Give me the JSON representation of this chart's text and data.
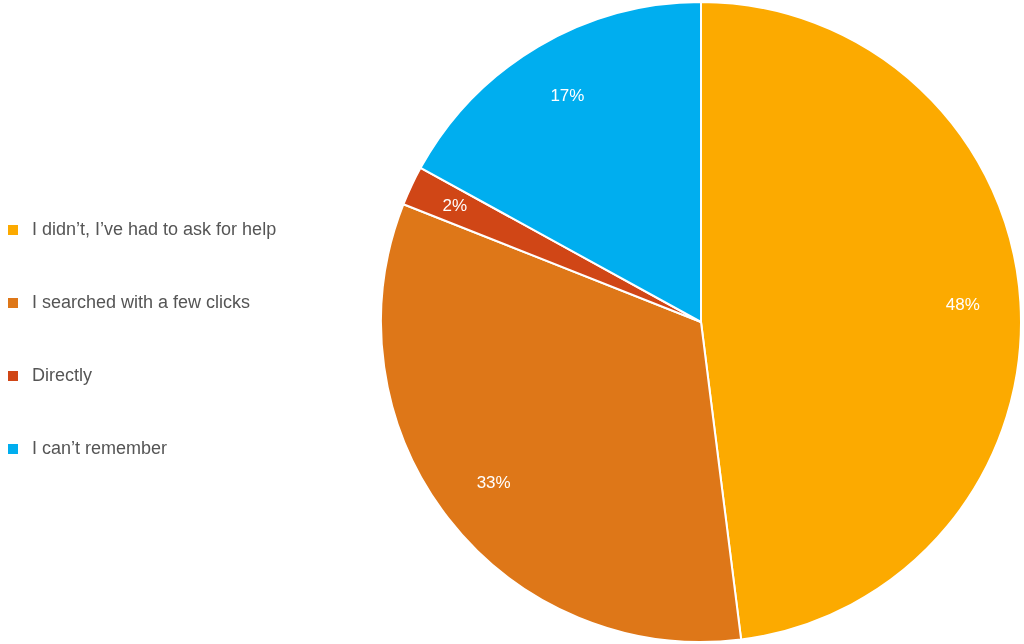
{
  "chart_data": {
    "type": "pie",
    "categories": [
      "I didn’t, I’ve had to ask for help",
      "I searched with a few clicks",
      "Directly",
      "I can’t remember"
    ],
    "values": [
      48,
      33,
      2,
      17
    ],
    "colors": [
      "#fcaa00",
      "#de7718",
      "#d04616",
      "#00aeef"
    ],
    "value_labels": [
      "48%",
      "33%",
      "2%",
      "17%"
    ],
    "legend": "left"
  }
}
